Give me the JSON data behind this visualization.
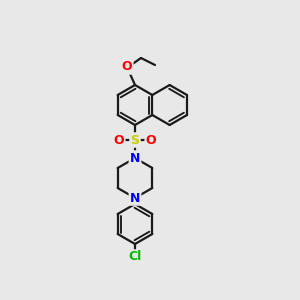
{
  "bg_color": "#e8e8e8",
  "bond_color": "#1a1a1a",
  "atom_colors": {
    "O": "#ff0000",
    "N": "#0000ff",
    "S": "#cccc00",
    "Cl": "#00bb00",
    "C": "#1a1a1a"
  },
  "figsize": [
    3.0,
    3.0
  ],
  "dpi": 100
}
